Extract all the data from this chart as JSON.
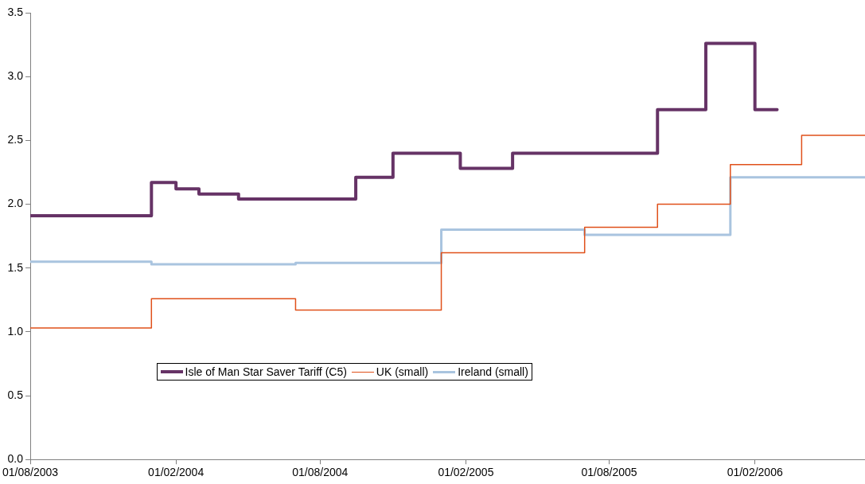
{
  "chart_data": {
    "type": "step",
    "xlim": [
      "2003-08-01",
      "2006-06-20"
    ],
    "xticks": [
      {
        "value": "2003-08-01",
        "label": "01/08/2003"
      },
      {
        "value": "2004-02-01",
        "label": "01/02/2004"
      },
      {
        "value": "2004-08-01",
        "label": "01/08/2004"
      },
      {
        "value": "2005-02-01",
        "label": "01/02/2005"
      },
      {
        "value": "2005-08-01",
        "label": "01/08/2005"
      },
      {
        "value": "2006-02-01",
        "label": "01/02/2006"
      }
    ],
    "ylim": [
      0,
      3.5
    ],
    "yticks": [
      {
        "value": 0,
        "label": "0.0"
      },
      {
        "value": 0.5,
        "label": "0.5"
      },
      {
        "value": 1,
        "label": "1.0"
      },
      {
        "value": 1.5,
        "label": "1.5"
      },
      {
        "value": 2,
        "label": "2.0"
      },
      {
        "value": 2.5,
        "label": "2.5"
      },
      {
        "value": 3,
        "label": "3.0"
      },
      {
        "value": 3.5,
        "label": "3.5"
      }
    ],
    "grid": false,
    "legend": "bottom",
    "marker": "none",
    "line_style": "solid",
    "series": [
      {
        "name": "Isle of Man Star Saver Tariff (C5)",
        "color": "#663366",
        "x": [
          "2003-08-01",
          "2004-01-01",
          "2004-02-01",
          "2004-03-01",
          "2004-04-20",
          "2004-09-15",
          "2004-11-01",
          "2005-01-25",
          "2005-04-01",
          "2005-10-01",
          "2005-12-01",
          "2006-02-01",
          "2006-03-01"
        ],
        "values": [
          1.91,
          2.17,
          2.12,
          2.08,
          2.04,
          2.21,
          2.4,
          2.28,
          2.4,
          2.74,
          3.26,
          2.74,
          2.74
        ]
      },
      {
        "name": "UK (small)",
        "color": "#e0501a",
        "x": [
          "2003-08-01",
          "2004-01-01",
          "2004-07-01",
          "2005-01-01",
          "2005-07-01",
          "2005-10-01",
          "2006-01-01",
          "2006-04-01",
          "2006-06-20"
        ],
        "values": [
          1.03,
          1.26,
          1.17,
          1.62,
          1.82,
          2.0,
          2.31,
          2.54,
          2.54
        ]
      },
      {
        "name": "Ireland (small)",
        "color": "#a9c4df",
        "x": [
          "2003-08-01",
          "2004-01-01",
          "2004-07-01",
          "2005-01-01",
          "2005-07-01",
          "2006-01-01",
          "2006-06-20"
        ],
        "values": [
          1.55,
          1.53,
          1.54,
          1.8,
          1.76,
          2.21,
          2.21
        ]
      }
    ]
  }
}
